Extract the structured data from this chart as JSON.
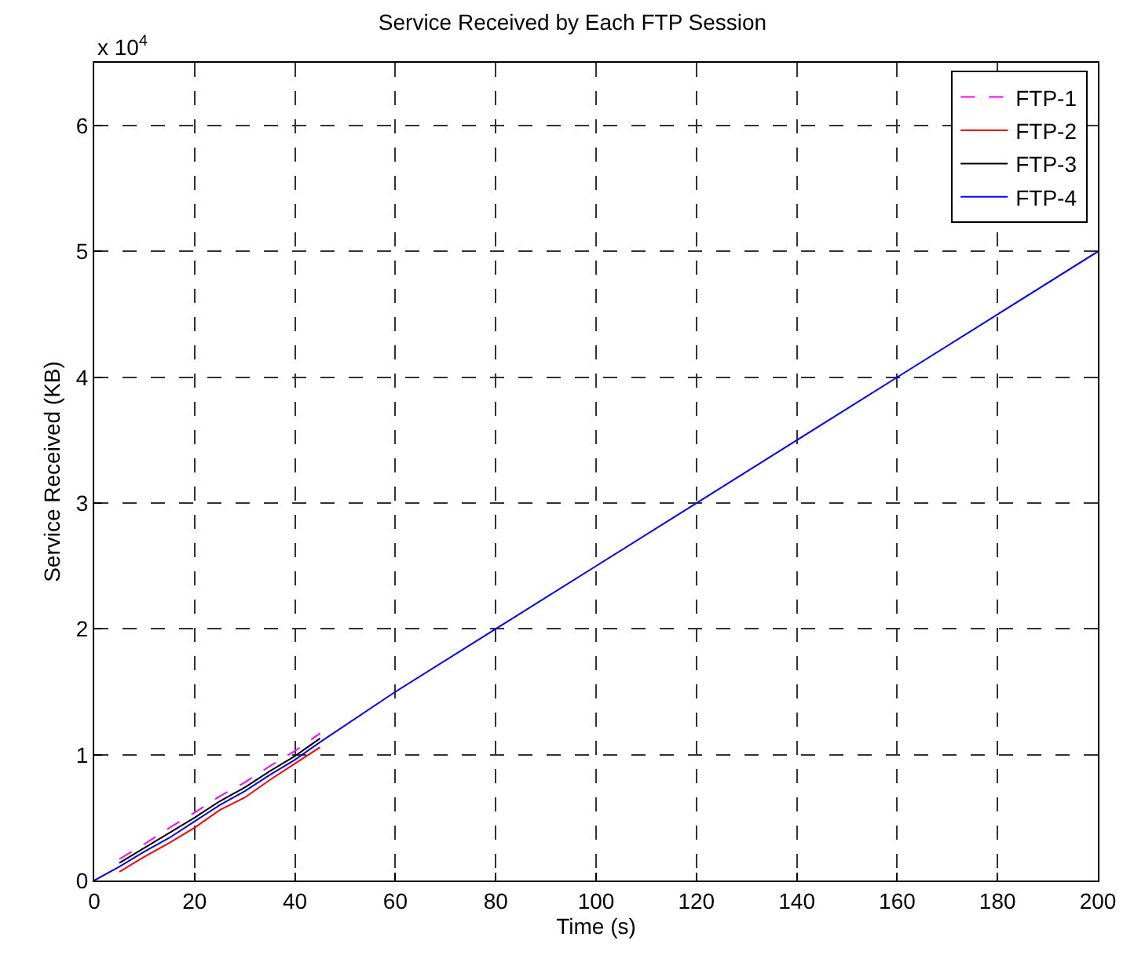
{
  "chart_data": {
    "type": "line",
    "title": "Service Received by Each FTP Session",
    "xlabel": "Time (s)",
    "ylabel": "Service Received (KB)",
    "annotations": [
      "x 10$^{4}$"
    ],
    "x": [
      0,
      5,
      10,
      15,
      20,
      25,
      30,
      35,
      40,
      45,
      60,
      80,
      100,
      120,
      140,
      160,
      180,
      200
    ],
    "series": [
      {
        "name": "FTP-1",
        "color": "#ff00ff",
        "line_style": "dashed",
        "x": [
          5,
          10,
          15,
          20,
          25,
          30,
          35,
          40,
          45
        ],
        "values": [
          0.17,
          0.29,
          0.42,
          0.54,
          0.67,
          0.78,
          0.91,
          1.03,
          1.17
        ]
      },
      {
        "name": "FTP-2",
        "color": "#ff0000",
        "line_style": "solid",
        "x": [
          5,
          10,
          15,
          20,
          25,
          30,
          35,
          40,
          45
        ],
        "values": [
          0.07,
          0.19,
          0.3,
          0.42,
          0.56,
          0.66,
          0.8,
          0.93,
          1.06
        ]
      },
      {
        "name": "FTP-3",
        "color": "#000000",
        "line_style": "solid",
        "x": [
          5,
          10,
          15,
          20,
          25,
          30,
          35,
          40,
          45
        ],
        "values": [
          0.14,
          0.26,
          0.38,
          0.5,
          0.63,
          0.74,
          0.87,
          0.99,
          1.13
        ]
      },
      {
        "name": "FTP-4",
        "color": "#0000ff",
        "line_style": "solid",
        "values": [
          0,
          0.11,
          0.23,
          0.34,
          0.47,
          0.6,
          0.71,
          0.84,
          0.96,
          1.1,
          1.5,
          2,
          2.5,
          3,
          3.5,
          4,
          4.5,
          5
        ]
      }
    ],
    "xlim": [
      0,
      200
    ],
    "xticks": [
      0,
      20,
      40,
      60,
      80,
      100,
      120,
      140,
      160,
      180,
      200
    ],
    "ylim": [
      0,
      6.5
    ],
    "yticks": [
      0,
      1,
      2,
      3,
      4,
      5,
      6
    ],
    "grid": true,
    "legend": "top right",
    "marker": "none"
  }
}
